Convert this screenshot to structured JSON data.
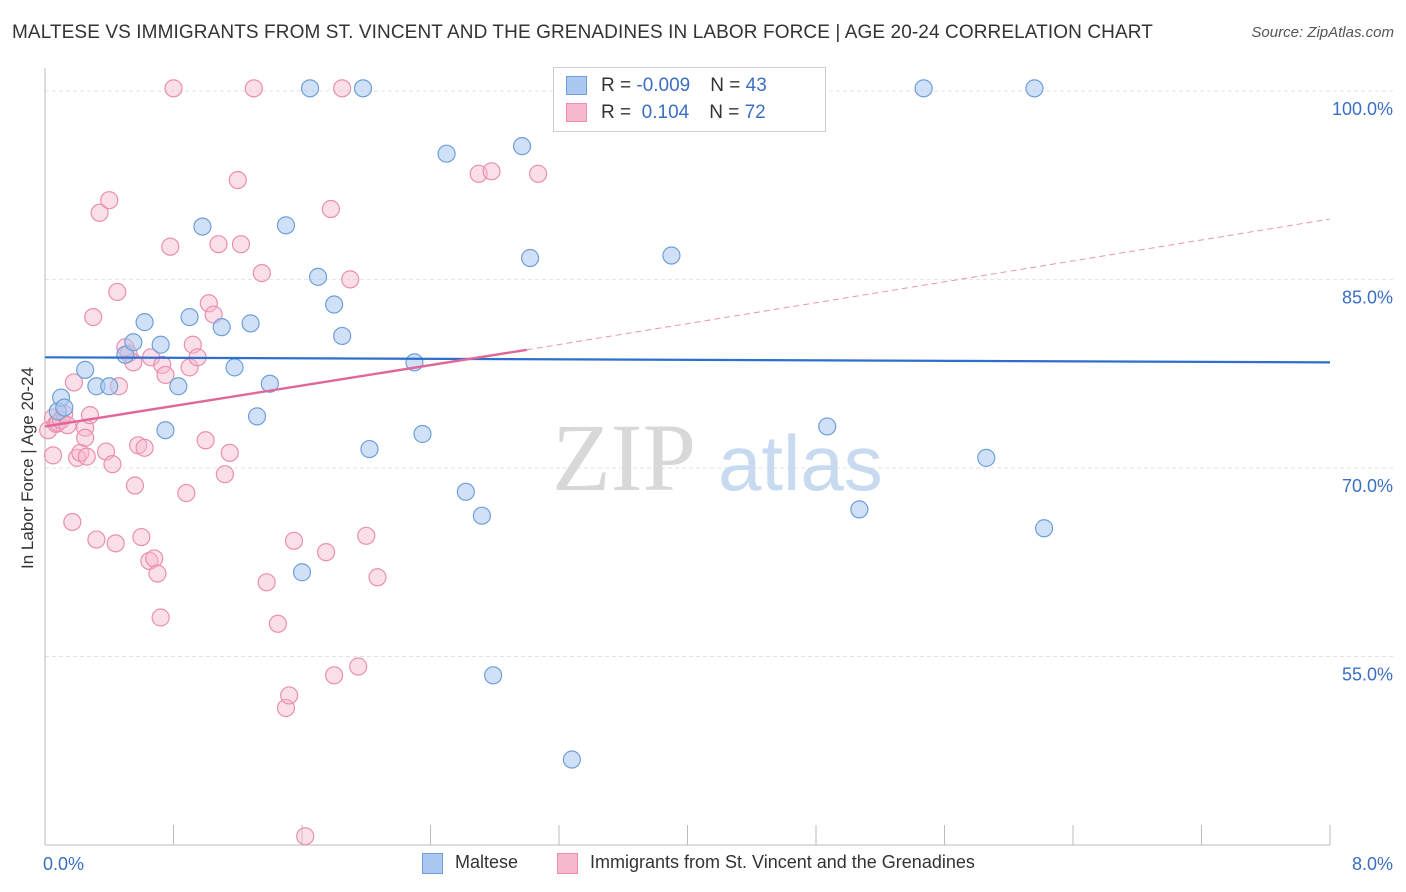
{
  "title": "MALTESE VS IMMIGRANTS FROM ST. VINCENT AND THE GRENADINES IN LABOR FORCE | AGE 20-24 CORRELATION CHART",
  "source_prefix": "Source: ",
  "source_name": "ZipAtlas.com",
  "watermark": {
    "zip": "ZIP",
    "atlas": "atlas"
  },
  "legend": {
    "rows": [
      {
        "r_label": "R = ",
        "r_value": "-0.009",
        "n_label": "N = ",
        "n_value": "43"
      },
      {
        "r_label": "R = ",
        "r_value": " 0.104",
        "n_label": "N = ",
        "n_value": "72"
      }
    ]
  },
  "colors": {
    "maltese_fill": "#aac8f0",
    "maltese_stroke": "#6f9fd8",
    "maltese_line": "#2d6fcc",
    "svg_fill": "#f6b8cc",
    "svg_stroke": "#ea8fae",
    "svg_line": "#e0679a",
    "axis_text": "#3a6fc4",
    "grid": "#e2e2e2"
  },
  "chart_data": {
    "type": "scatter",
    "title": "MALTESE VS IMMIGRANTS FROM ST. VINCENT AND THE GRENADINES IN LABOR FORCE | AGE 20-24 CORRELATION CHART",
    "xlabel": "",
    "ylabel": "In Labor Force | Age 20-24",
    "xlim": [
      0,
      8
    ],
    "ylim": [
      40,
      101.5
    ],
    "x_tick_labels": [
      {
        "value": 0,
        "label": "0.0%"
      },
      {
        "value": 8,
        "label": "8.0%"
      }
    ],
    "y_tick_labels": [
      {
        "value": 100,
        "label": "100.0%"
      },
      {
        "value": 85,
        "label": "85.0%"
      },
      {
        "value": 70,
        "label": "70.0%"
      },
      {
        "value": 55,
        "label": "55.0%"
      }
    ],
    "grid": true,
    "legend_position": "top-center",
    "series": [
      {
        "name": "Maltese",
        "R": -0.009,
        "N": 43,
        "trend": {
          "x": [
            0,
            8
          ],
          "y": [
            78.8,
            78.4
          ],
          "extrapolated_x": null
        },
        "points": [
          [
            0.08,
            74.5
          ],
          [
            0.1,
            75.6
          ],
          [
            0.12,
            74.8
          ],
          [
            0.25,
            77.8
          ],
          [
            0.32,
            76.5
          ],
          [
            0.4,
            76.5
          ],
          [
            0.5,
            79.0
          ],
          [
            0.55,
            80.0
          ],
          [
            0.62,
            81.6
          ],
          [
            0.72,
            79.8
          ],
          [
            0.75,
            73.0
          ],
          [
            0.83,
            76.5
          ],
          [
            0.9,
            82.0
          ],
          [
            0.98,
            89.2
          ],
          [
            1.1,
            81.2
          ],
          [
            1.18,
            78.0
          ],
          [
            1.28,
            81.5
          ],
          [
            1.4,
            76.7
          ],
          [
            1.32,
            74.1
          ],
          [
            1.5,
            89.3
          ],
          [
            1.6,
            61.7
          ],
          [
            1.65,
            100.2
          ],
          [
            1.7,
            85.2
          ],
          [
            1.8,
            83.0
          ],
          [
            1.85,
            80.5
          ],
          [
            1.98,
            100.2
          ],
          [
            2.02,
            71.5
          ],
          [
            2.3,
            78.4
          ],
          [
            2.35,
            72.7
          ],
          [
            2.5,
            95.0
          ],
          [
            2.62,
            68.1
          ],
          [
            2.72,
            66.2
          ],
          [
            2.79,
            53.5
          ],
          [
            2.97,
            95.6
          ],
          [
            3.02,
            86.7
          ],
          [
            3.28,
            46.8
          ],
          [
            3.9,
            86.9
          ],
          [
            4.87,
            73.3
          ],
          [
            5.07,
            66.7
          ],
          [
            5.47,
            100.2
          ],
          [
            5.86,
            70.8
          ],
          [
            6.16,
            100.2
          ],
          [
            6.22,
            65.2
          ]
        ]
      },
      {
        "name": "Immigrants from St. Vincent and the Grenadines",
        "R": 0.104,
        "N": 72,
        "trend": {
          "x": [
            0,
            3
          ],
          "y": [
            73.3,
            79.4
          ],
          "extrapolated_x": [
            3,
            8
          ],
          "extrapolated_y": [
            79.4,
            89.8
          ]
        },
        "points": [
          [
            0.02,
            73.0
          ],
          [
            0.05,
            74.0
          ],
          [
            0.05,
            71.0
          ],
          [
            0.07,
            73.5
          ],
          [
            0.08,
            73.6
          ],
          [
            0.1,
            73.8
          ],
          [
            0.12,
            74.3
          ],
          [
            0.14,
            73.4
          ],
          [
            0.17,
            65.7
          ],
          [
            0.18,
            76.8
          ],
          [
            0.2,
            70.8
          ],
          [
            0.22,
            71.2
          ],
          [
            0.25,
            73.2
          ],
          [
            0.26,
            70.9
          ],
          [
            0.28,
            74.2
          ],
          [
            0.3,
            82.0
          ],
          [
            0.32,
            64.3
          ],
          [
            0.34,
            90.3
          ],
          [
            0.38,
            71.3
          ],
          [
            0.4,
            91.3
          ],
          [
            0.42,
            70.3
          ],
          [
            0.45,
            84.0
          ],
          [
            0.46,
            76.5
          ],
          [
            0.5,
            79.6
          ],
          [
            0.52,
            79.1
          ],
          [
            0.55,
            78.4
          ],
          [
            0.56,
            68.6
          ],
          [
            0.58,
            71.8
          ],
          [
            0.6,
            64.5
          ],
          [
            0.62,
            71.6
          ],
          [
            0.65,
            62.6
          ],
          [
            0.66,
            78.8
          ],
          [
            0.68,
            62.8
          ],
          [
            0.7,
            61.6
          ],
          [
            0.72,
            58.1
          ],
          [
            0.73,
            78.2
          ],
          [
            0.75,
            77.4
          ],
          [
            0.78,
            87.6
          ],
          [
            0.8,
            100.2
          ],
          [
            0.88,
            68.0
          ],
          [
            0.9,
            78.0
          ],
          [
            0.92,
            79.8
          ],
          [
            0.95,
            78.8
          ],
          [
            1.0,
            72.2
          ],
          [
            1.02,
            83.1
          ],
          [
            1.05,
            82.2
          ],
          [
            1.08,
            87.8
          ],
          [
            1.12,
            69.5
          ],
          [
            1.15,
            71.2
          ],
          [
            1.2,
            92.9
          ],
          [
            1.22,
            87.8
          ],
          [
            1.3,
            100.2
          ],
          [
            1.35,
            85.5
          ],
          [
            1.38,
            60.9
          ],
          [
            1.45,
            57.6
          ],
          [
            1.5,
            50.9
          ],
          [
            1.52,
            51.9
          ],
          [
            1.55,
            64.2
          ],
          [
            1.62,
            40.7
          ],
          [
            1.75,
            63.3
          ],
          [
            1.78,
            90.6
          ],
          [
            1.8,
            53.5
          ],
          [
            1.85,
            100.2
          ],
          [
            1.9,
            85.0
          ],
          [
            1.95,
            54.2
          ],
          [
            2.0,
            64.6
          ],
          [
            2.07,
            61.3
          ],
          [
            2.7,
            93.4
          ],
          [
            2.78,
            93.6
          ],
          [
            3.07,
            93.4
          ],
          [
            0.25,
            72.4
          ],
          [
            0.44,
            64.0
          ]
        ]
      }
    ]
  },
  "bottom_legend": {
    "maltese_label": "Maltese",
    "svg_label": "Immigrants from St. Vincent and the Grenadines"
  }
}
